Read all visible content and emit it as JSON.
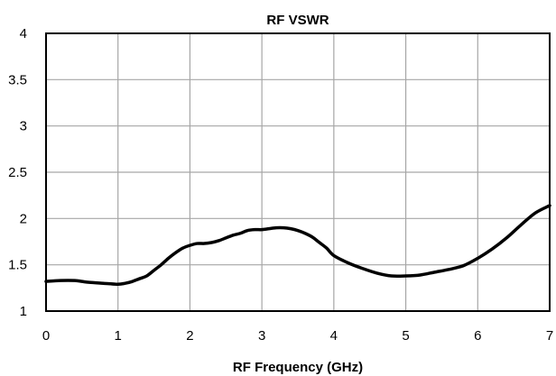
{
  "chart_data": {
    "type": "line",
    "title": "RF VSWR",
    "xlabel": "RF Frequency (GHz)",
    "ylabel": "",
    "xlim": [
      0,
      7
    ],
    "ylim": [
      1,
      4
    ],
    "x_ticks": [
      "0",
      "1",
      "2",
      "3",
      "4",
      "5",
      "6",
      "7"
    ],
    "y_ticks": [
      "1",
      "1.5",
      "2",
      "2.5",
      "3",
      "3.5",
      "4"
    ],
    "grid": true,
    "legend": "none",
    "series": [
      {
        "color": "#000000",
        "x": [
          0,
          0.2,
          0.4,
          0.5,
          0.6,
          0.8,
          1.0,
          1.1,
          1.2,
          1.3,
          1.4,
          1.5,
          1.6,
          1.7,
          1.8,
          1.9,
          2.0,
          2.1,
          2.2,
          2.3,
          2.4,
          2.5,
          2.6,
          2.7,
          2.8,
          2.9,
          3.0,
          3.1,
          3.2,
          3.3,
          3.4,
          3.5,
          3.6,
          3.7,
          3.8,
          3.9,
          4.0,
          4.2,
          4.4,
          4.6,
          4.8,
          5.0,
          5.2,
          5.4,
          5.6,
          5.8,
          6.0,
          6.2,
          6.4,
          6.6,
          6.8,
          7.0
        ],
        "y": [
          1.32,
          1.33,
          1.33,
          1.32,
          1.31,
          1.3,
          1.29,
          1.3,
          1.32,
          1.35,
          1.38,
          1.44,
          1.5,
          1.57,
          1.63,
          1.68,
          1.71,
          1.73,
          1.73,
          1.74,
          1.76,
          1.79,
          1.82,
          1.84,
          1.87,
          1.88,
          1.88,
          1.89,
          1.9,
          1.9,
          1.89,
          1.87,
          1.84,
          1.8,
          1.74,
          1.68,
          1.6,
          1.52,
          1.46,
          1.41,
          1.38,
          1.38,
          1.39,
          1.42,
          1.45,
          1.49,
          1.57,
          1.67,
          1.79,
          1.93,
          2.06,
          2.14
        ]
      }
    ]
  }
}
